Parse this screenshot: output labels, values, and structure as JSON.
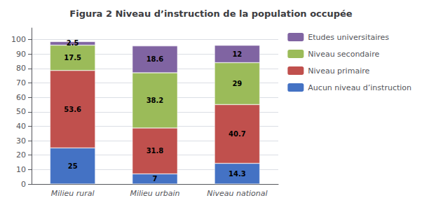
{
  "chart_data": {
    "type": "bar",
    "title": "Figura 2 Niveau d’instruction de la population occupée",
    "categories": [
      "Milieu rural",
      "Milieu urbain",
      "Niveau national"
    ],
    "series": [
      {
        "name": "Aucun niveau d’instruction",
        "color": "#4472C4",
        "values": [
          25,
          7,
          14.3
        ]
      },
      {
        "name": "Niveau primaire",
        "color": "#C0504D",
        "values": [
          53.6,
          31.8,
          40.7
        ]
      },
      {
        "name": "Niveau secondaire",
        "color": "#9BBB59",
        "values": [
          17.5,
          38.2,
          29
        ]
      },
      {
        "name": "Etudes universitaires",
        "color": "#8064A2",
        "values": [
          2.5,
          18.6,
          12
        ]
      }
    ],
    "stacked": true,
    "data_labels": true,
    "ylim": [
      0,
      108
    ],
    "yticks": [
      0,
      10,
      20,
      30,
      40,
      50,
      60,
      70,
      80,
      90,
      100
    ],
    "grid": true,
    "legend": "right"
  }
}
